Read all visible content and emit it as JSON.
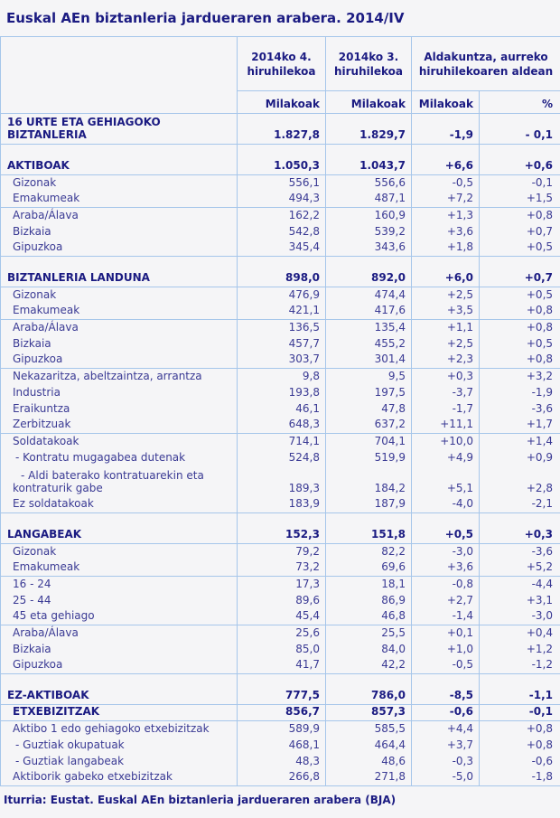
{
  "title": "Euskal AEn biztanleria jardueraren arabera. 2014/IV",
  "source": "Iturria: Eustat. Euskal AEn biztanleria jardueraren arabera (BJA)",
  "colors": {
    "background": "#f5f5f7",
    "border": "#a6c6ea",
    "text_bold": "#1b1b82",
    "text_regular": "#3a3a94"
  },
  "table": {
    "col_headers": [
      "2014ko 4. hiruhilekoa",
      "2014ko 3. hiruhilekoa",
      "Aldakuntza, aurreko hiruhilekoaren aldean"
    ],
    "unit_headers": [
      "Milakoak",
      "Milakoak",
      "Milakoak",
      "%"
    ],
    "rows": [
      {
        "label": "16 URTE ETA GEHIAGOKO BIZTANLERIA",
        "values": [
          "1.827,8",
          "1.829,7",
          "-1,9",
          "- 0,1"
        ],
        "bold": true,
        "wrap": true,
        "indent": 0
      },
      {
        "label": "AKTIBOAK",
        "values": [
          "1.050,3",
          "1.043,7",
          "+6,6",
          "+0,6"
        ],
        "bold": true,
        "gap": true,
        "border_top": true,
        "indent": 0
      },
      {
        "label": "Gizonak",
        "values": [
          "556,1",
          "556,6",
          "-0,5",
          "-0,1"
        ],
        "border_top": true,
        "indent": 1
      },
      {
        "label": "Emakumeak",
        "values": [
          "494,3",
          "487,1",
          "+7,2",
          "+1,5"
        ],
        "indent": 1
      },
      {
        "label": "Araba/Álava",
        "values": [
          "162,2",
          "160,9",
          "+1,3",
          "+0,8"
        ],
        "border_top": true,
        "indent": 1
      },
      {
        "label": "Bizkaia",
        "values": [
          "542,8",
          "539,2",
          "+3,6",
          "+0,7"
        ],
        "indent": 1
      },
      {
        "label": "Gipuzkoa",
        "values": [
          "345,4",
          "343,6",
          "+1,8",
          "+0,5"
        ],
        "indent": 1
      },
      {
        "label": "BIZTANLERIA LANDUNA",
        "values": [
          "898,0",
          "892,0",
          "+6,0",
          "+0,7"
        ],
        "bold": true,
        "gap": true,
        "border_top": true,
        "indent": 0
      },
      {
        "label": "Gizonak",
        "values": [
          "476,9",
          "474,4",
          "+2,5",
          "+0,5"
        ],
        "border_top": true,
        "indent": 1
      },
      {
        "label": "Emakumeak",
        "values": [
          "421,1",
          "417,6",
          "+3,5",
          "+0,8"
        ],
        "indent": 1
      },
      {
        "label": "Araba/Álava",
        "values": [
          "136,5",
          "135,4",
          "+1,1",
          "+0,8"
        ],
        "border_top": true,
        "indent": 1
      },
      {
        "label": "Bizkaia",
        "values": [
          "457,7",
          "455,2",
          "+2,5",
          "+0,5"
        ],
        "indent": 1
      },
      {
        "label": "Gipuzkoa",
        "values": [
          "303,7",
          "301,4",
          "+2,3",
          "+0,8"
        ],
        "indent": 1
      },
      {
        "label": "Nekazaritza, abeltzaintza, arrantza",
        "values": [
          "9,8",
          "9,5",
          "+0,3",
          "+3,2"
        ],
        "border_top": true,
        "indent": 1
      },
      {
        "label": "Industria",
        "values": [
          "193,8",
          "197,5",
          "-3,7",
          "-1,9"
        ],
        "indent": 1
      },
      {
        "label": "Eraikuntza",
        "values": [
          "46,1",
          "47,8",
          "-1,7",
          "-3,6"
        ],
        "indent": 1
      },
      {
        "label": "Zerbitzuak",
        "values": [
          "648,3",
          "637,2",
          "+11,1",
          "+1,7"
        ],
        "indent": 1
      },
      {
        "label": "Soldatakoak",
        "values": [
          "714,1",
          "704,1",
          "+10,0",
          "+1,4"
        ],
        "border_top": true,
        "indent": 1
      },
      {
        "label": "- Kontratu mugagabea dutenak",
        "values": [
          "524,8",
          "519,9",
          "+4,9",
          "+0,9"
        ],
        "indent": 2
      },
      {
        "label": "- Aldi baterako kontratuarekin eta kontraturik gabe",
        "values": [
          "189,3",
          "184,2",
          "+5,1",
          "+2,8"
        ],
        "indent": 1,
        "wrap": true,
        "hang": true
      },
      {
        "label": "Ez soldatakoak",
        "values": [
          "183,9",
          "187,9",
          "-4,0",
          "-2,1"
        ],
        "indent": 1
      },
      {
        "label": "LANGABEAK",
        "values": [
          "152,3",
          "151,8",
          "+0,5",
          "+0,3"
        ],
        "bold": true,
        "gap": true,
        "border_top": true,
        "indent": 0
      },
      {
        "label": "Gizonak",
        "values": [
          "79,2",
          "82,2",
          "-3,0",
          "-3,6"
        ],
        "border_top": true,
        "indent": 1
      },
      {
        "label": "Emakumeak",
        "values": [
          "73,2",
          "69,6",
          "+3,6",
          "+5,2"
        ],
        "indent": 1
      },
      {
        "label": "16 - 24",
        "values": [
          "17,3",
          "18,1",
          "-0,8",
          "-4,4"
        ],
        "border_top": true,
        "indent": 1
      },
      {
        "label": "25 - 44",
        "values": [
          "89,6",
          "86,9",
          "+2,7",
          "+3,1"
        ],
        "indent": 1
      },
      {
        "label": "45 eta gehiago",
        "values": [
          "45,4",
          "46,8",
          "-1,4",
          "-3,0"
        ],
        "indent": 1
      },
      {
        "label": "Araba/Álava",
        "values": [
          "25,6",
          "25,5",
          "+0,1",
          "+0,4"
        ],
        "border_top": true,
        "indent": 1
      },
      {
        "label": "Bizkaia",
        "values": [
          "85,0",
          "84,0",
          "+1,0",
          "+1,2"
        ],
        "indent": 1
      },
      {
        "label": "Gipuzkoa",
        "values": [
          "41,7",
          "42,2",
          "-0,5",
          "-1,2"
        ],
        "indent": 1
      },
      {
        "label": "EZ-AKTIBOAK",
        "values": [
          "777,5",
          "786,0",
          "-8,5",
          "-1,1"
        ],
        "bold": true,
        "gap": true,
        "border_top": true,
        "indent": 0
      },
      {
        "label": "ETXEBIZITZAK",
        "values": [
          "856,7",
          "857,3",
          "-0,6",
          "-0,1"
        ],
        "bold": true,
        "border_top": true,
        "indent": 1
      },
      {
        "label": "Aktibo 1 edo gehiagoko etxebizitzak",
        "values": [
          "589,9",
          "585,5",
          "+4,4",
          "+0,8"
        ],
        "border_top": true,
        "indent": 1
      },
      {
        "label": "- Guztiak okupatuak",
        "values": [
          "468,1",
          "464,4",
          "+3,7",
          "+0,8"
        ],
        "indent": 2
      },
      {
        "label": "- Guztiak langabeak",
        "values": [
          "48,3",
          "48,6",
          "-0,3",
          "-0,6"
        ],
        "indent": 2
      },
      {
        "label": "Aktiborik gabeko etxebizitzak",
        "values": [
          "266,8",
          "271,8",
          "-5,0",
          "-1,8"
        ],
        "indent": 1
      }
    ]
  }
}
